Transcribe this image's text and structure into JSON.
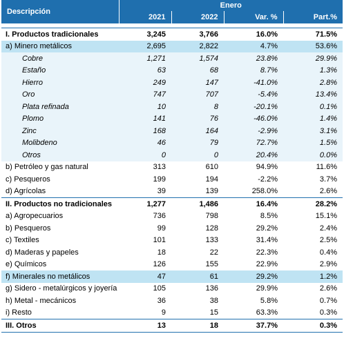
{
  "header": {
    "description": "Descripción",
    "period": "Enero",
    "columns": [
      "2021",
      "2022",
      "Var. %",
      "Part.%"
    ]
  },
  "rows": [
    {
      "label": "I. Productos tradicionales",
      "values": [
        "3,245",
        "3,766",
        "16.0%",
        "71.5%"
      ]
    },
    {
      "label": "a) Minero metálicos",
      "values": [
        "2,695",
        "2,822",
        "4.7%",
        "53.6%"
      ]
    },
    {
      "label": "Cobre",
      "values": [
        "1,271",
        "1,574",
        "23.8%",
        "29.9%"
      ]
    },
    {
      "label": "Estaño",
      "values": [
        "63",
        "68",
        "8.7%",
        "1.3%"
      ]
    },
    {
      "label": "Hierro",
      "values": [
        "249",
        "147",
        "-41.0%",
        "2.8%"
      ]
    },
    {
      "label": "Oro",
      "values": [
        "747",
        "707",
        "-5.4%",
        "13.4%"
      ]
    },
    {
      "label": "Plata refinada",
      "values": [
        "10",
        "8",
        "-20.1%",
        "0.1%"
      ]
    },
    {
      "label": "Plomo",
      "values": [
        "141",
        "76",
        "-46.0%",
        "1.4%"
      ]
    },
    {
      "label": "Zinc",
      "values": [
        "168",
        "164",
        "-2.9%",
        "3.1%"
      ]
    },
    {
      "label": "Molibdeno",
      "values": [
        "46",
        "79",
        "72.7%",
        "1.5%"
      ]
    },
    {
      "label": "Otros",
      "values": [
        "0",
        "0",
        "20.4%",
        "0.0%"
      ]
    },
    {
      "label": "b) Petróleo y gas natural",
      "values": [
        "313",
        "610",
        "94.9%",
        "11.6%"
      ]
    },
    {
      "label": "c) Pesqueros",
      "values": [
        "199",
        "194",
        "-2.2%",
        "3.7%"
      ]
    },
    {
      "label": "d) Agrícolas",
      "values": [
        "39",
        "139",
        "258.0%",
        "2.6%"
      ]
    },
    {
      "label": "II. Productos no tradicionales",
      "values": [
        "1,277",
        "1,486",
        "16.4%",
        "28.2%"
      ]
    },
    {
      "label": "a) Agropecuarios",
      "values": [
        "736",
        "798",
        "8.5%",
        "15.1%"
      ]
    },
    {
      "label": "b) Pesqueros",
      "values": [
        "99",
        "128",
        "29.2%",
        "2.4%"
      ]
    },
    {
      "label": "c) Textiles",
      "values": [
        "101",
        "133",
        "31.4%",
        "2.5%"
      ]
    },
    {
      "label": "d) Maderas y papeles",
      "values": [
        "18",
        "22",
        "22.3%",
        "0.4%"
      ]
    },
    {
      "label": "e) Químicos",
      "values": [
        "126",
        "155",
        "22.9%",
        "2.9%"
      ]
    },
    {
      "label": "f) Minerales no metálicos",
      "values": [
        "47",
        "61",
        "29.2%",
        "1.2%"
      ]
    },
    {
      "label": "g) Sidero - metalúrgicos y joyería",
      "values": [
        "105",
        "136",
        "29.9%",
        "2.6%"
      ]
    },
    {
      "label": "h) Metal - mecánicos",
      "values": [
        "36",
        "38",
        "5.8%",
        "0.7%"
      ]
    },
    {
      "label": "i) Resto",
      "values": [
        "9",
        "15",
        "63.3%",
        "0.3%"
      ]
    },
    {
      "label": "III. Otros",
      "values": [
        "13",
        "18",
        "37.7%",
        "0.3%"
      ]
    }
  ]
}
